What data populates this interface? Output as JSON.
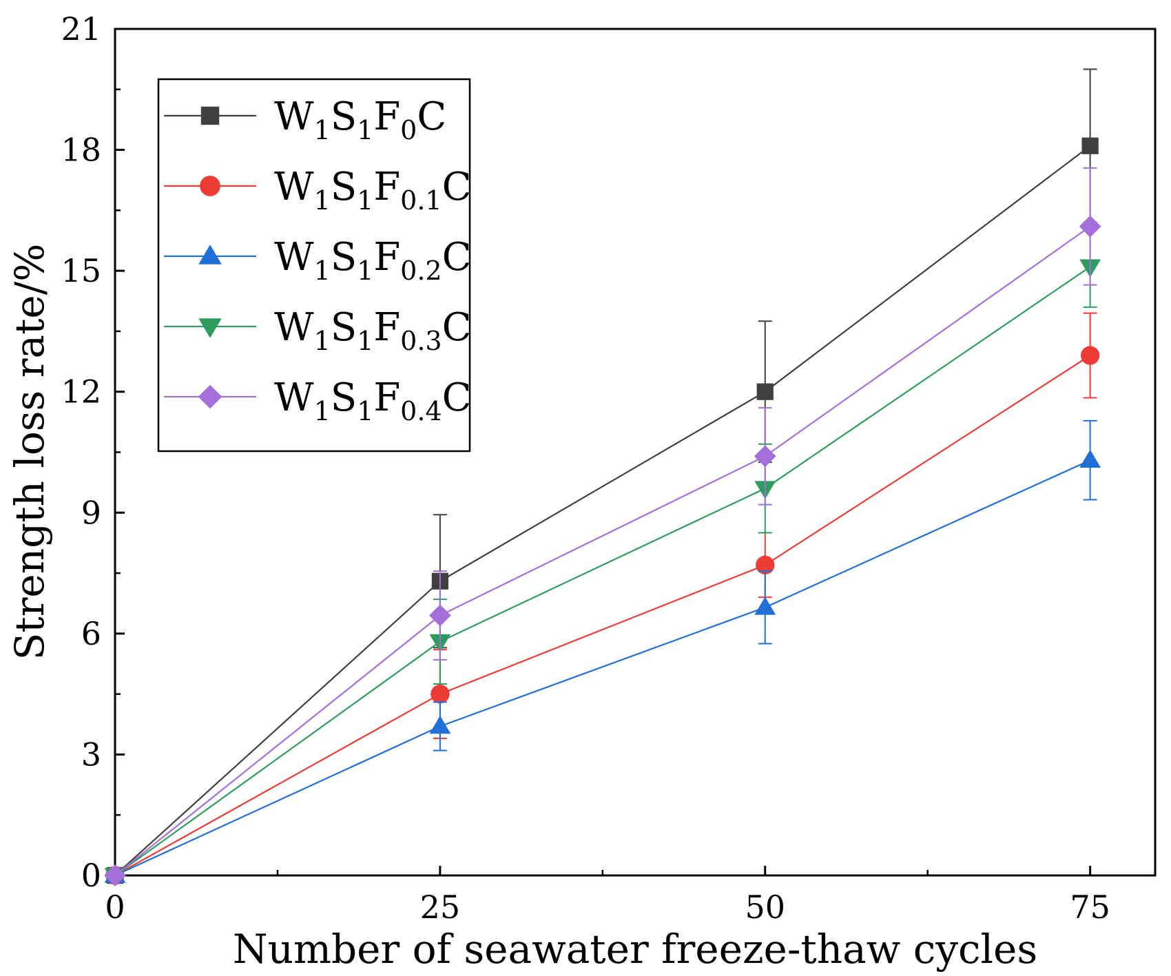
{
  "chart_data": {
    "type": "line",
    "xlabel": "Number of seawater freeze-thaw cycles",
    "ylabel": "Strength loss rate/%",
    "xlim": [
      0,
      80
    ],
    "ylim": [
      0,
      21
    ],
    "x_ticks": [
      0,
      25,
      50,
      75
    ],
    "x_minor_ticks": [
      12.5,
      37.5,
      62.5
    ],
    "y_ticks": [
      0,
      3,
      6,
      9,
      12,
      15,
      18,
      21
    ],
    "grid": false,
    "legend_position": "top-left",
    "x": [
      0,
      25,
      50,
      75
    ],
    "series": [
      {
        "name": "W1S1F0C",
        "legend": {
          "base": "W",
          "parts": [
            [
              "1",
              "S"
            ],
            [
              "1",
              "F"
            ],
            [
              "0",
              "C"
            ]
          ]
        },
        "color": "#3f3f3f",
        "marker": "square",
        "values": [
          0,
          7.3,
          12.0,
          18.1
        ],
        "errors": [
          0,
          1.65,
          1.75,
          1.9
        ]
      },
      {
        "name": "W1S1F0.1C",
        "legend": {
          "base": "W",
          "parts": [
            [
              "1",
              "S"
            ],
            [
              "1",
              "F"
            ],
            [
              "0.1",
              "C"
            ]
          ]
        },
        "color": "#ef3b36",
        "marker": "circle",
        "values": [
          0,
          4.5,
          7.7,
          12.9
        ],
        "errors": [
          0,
          1.1,
          0.8,
          1.05
        ]
      },
      {
        "name": "W1S1F0.2C",
        "legend": {
          "base": "W",
          "parts": [
            [
              "1",
              "S"
            ],
            [
              "1",
              "F"
            ],
            [
              "0.2",
              "C"
            ]
          ]
        },
        "color": "#1f6fd6",
        "marker": "triangle-up",
        "values": [
          0,
          3.7,
          6.65,
          10.3
        ],
        "errors": [
          0,
          0.6,
          0.9,
          0.98
        ]
      },
      {
        "name": "W1S1F0.3C",
        "legend": {
          "base": "W",
          "parts": [
            [
              "1",
              "S"
            ],
            [
              "1",
              "F"
            ],
            [
              "0.3",
              "C"
            ]
          ]
        },
        "color": "#2e9c5c",
        "marker": "triangle-down",
        "values": [
          0,
          5.8,
          9.6,
          15.1
        ],
        "errors": [
          0,
          1.05,
          1.1,
          1.0
        ]
      },
      {
        "name": "W1S1F0.4C",
        "legend": {
          "base": "W",
          "parts": [
            [
              "1",
              "S"
            ],
            [
              "1",
              "F"
            ],
            [
              "0.4",
              "C"
            ]
          ]
        },
        "color": "#a46fdb",
        "marker": "diamond",
        "values": [
          0,
          6.45,
          10.4,
          16.1
        ],
        "errors": [
          0,
          1.1,
          1.2,
          1.45
        ]
      }
    ]
  }
}
